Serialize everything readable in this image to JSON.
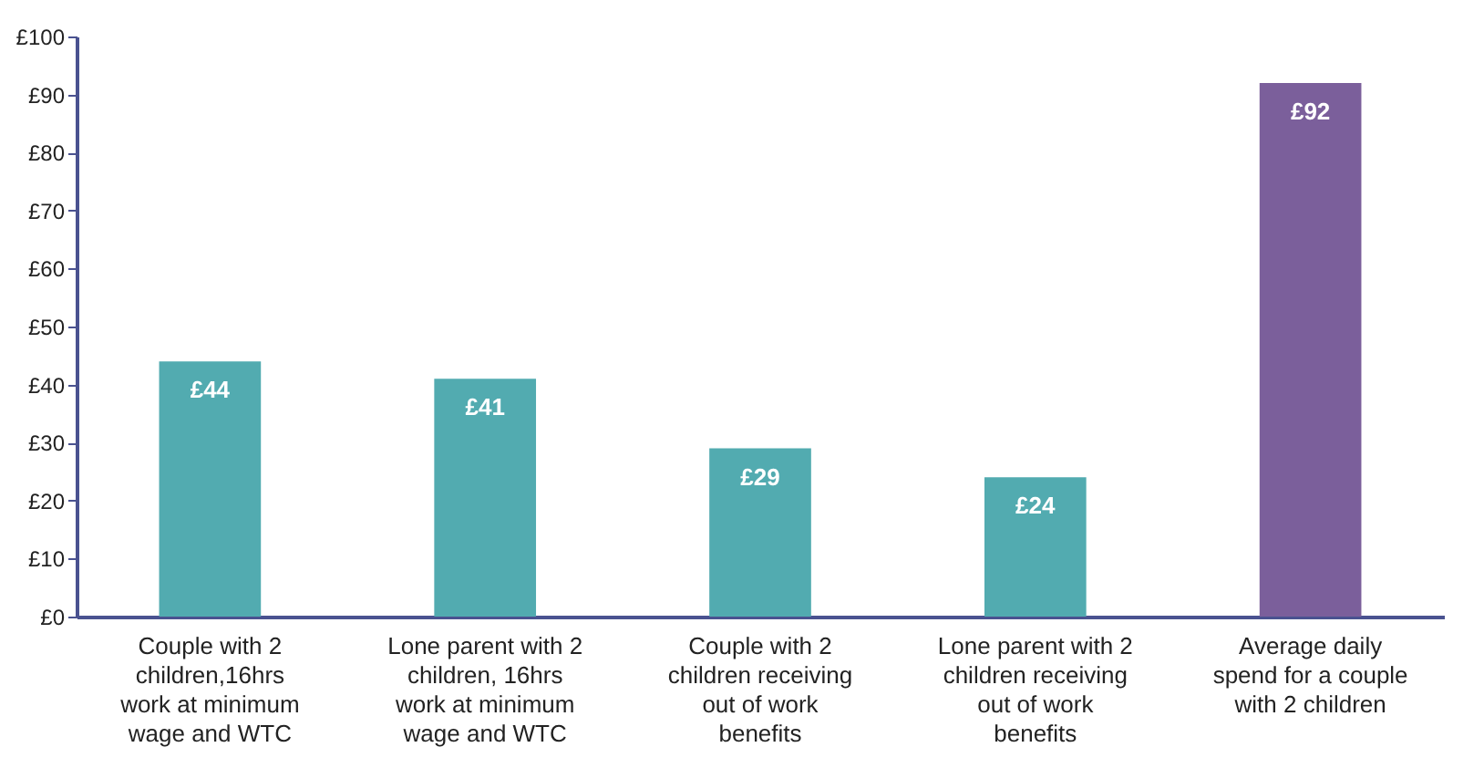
{
  "chart_data": {
    "type": "bar",
    "categories": [
      "Couple with 2 children,16hrs work at minimum wage and WTC",
      "Lone parent with 2 children, 16hrs work at minimum wage and WTC",
      "Couple with 2 children receiving out of work benefits",
      "Lone parent with 2 children receiving out of work benefits",
      "Average daily spend for a couple with 2 children"
    ],
    "values": [
      44,
      41,
      29,
      24,
      92
    ],
    "colors": [
      "#52abb0",
      "#52abb0",
      "#52abb0",
      "#52abb0",
      "#7b5f9b"
    ],
    "value_labels": [
      "£44",
      "£41",
      "£29",
      "£24",
      "£92"
    ],
    "ylim": [
      0,
      100
    ],
    "yticks": [
      {
        "value": 0,
        "label": "£0"
      },
      {
        "value": 10,
        "label": "£10"
      },
      {
        "value": 20,
        "label": "£20"
      },
      {
        "value": 30,
        "label": "£30"
      },
      {
        "value": 40,
        "label": "£40"
      },
      {
        "value": 50,
        "label": "£50"
      },
      {
        "value": 60,
        "label": "£60"
      },
      {
        "value": 70,
        "label": "£70"
      },
      {
        "value": 80,
        "label": "£80"
      },
      {
        "value": 90,
        "label": "£90"
      },
      {
        "value": 100,
        "label": "£100"
      }
    ],
    "grid": false
  }
}
